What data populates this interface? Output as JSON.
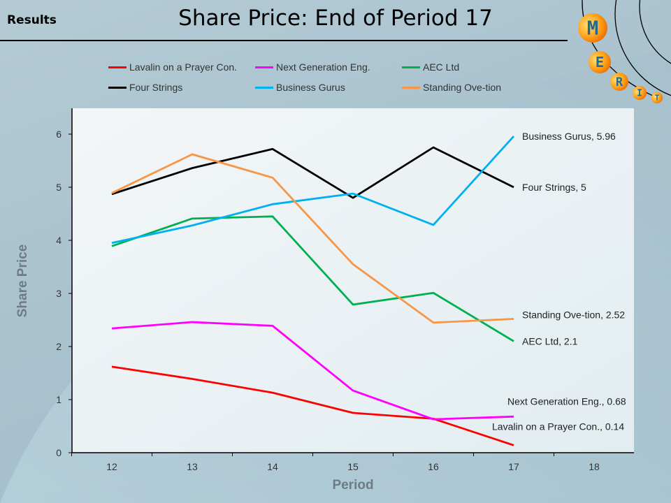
{
  "header": {
    "section_label": "Results",
    "title": "Share Price: End of Period 17"
  },
  "logo": {
    "text": "MERIT",
    "letters": [
      "M",
      "E",
      "R",
      "I",
      "T"
    ]
  },
  "chart_data": {
    "type": "line",
    "title": "Share Price: End of Period 17",
    "xlabel": "Period",
    "ylabel": "Share Price",
    "x": [
      12,
      13,
      14,
      15,
      16,
      17
    ],
    "x_ticks": [
      "12",
      "13",
      "14",
      "15",
      "16",
      "17",
      "18"
    ],
    "y_ticks": [
      "0",
      "1",
      "2",
      "3",
      "4",
      "5",
      "6"
    ],
    "xlim": [
      12,
      18
    ],
    "ylim": [
      0,
      6.5
    ],
    "grid": false,
    "legend_position": "top",
    "series": [
      {
        "name": "Lavalin on a Prayer Con.",
        "color": "#ff0000",
        "values": [
          1.62,
          1.39,
          1.13,
          0.75,
          0.64,
          0.14
        ],
        "end_label": "Lavalin on a Prayer Con., 0.14"
      },
      {
        "name": "Next Generation Eng.",
        "color": "#ff00ff",
        "values": [
          2.34,
          2.46,
          2.39,
          1.17,
          0.63,
          0.68
        ],
        "end_label": "Next Generation Eng., 0.68"
      },
      {
        "name": "AEC Ltd",
        "color": "#00b050",
        "values": [
          3.89,
          4.41,
          4.45,
          2.79,
          3.01,
          2.1
        ],
        "end_label": "AEC Ltd, 2.1"
      },
      {
        "name": "Four Strings",
        "color": "#000000",
        "values": [
          4.87,
          5.36,
          5.72,
          4.8,
          5.75,
          5
        ],
        "end_label": "Four Strings, 5"
      },
      {
        "name": "Business Gurus",
        "color": "#00b0f0",
        "values": [
          3.95,
          4.28,
          4.68,
          4.88,
          4.29,
          5.96
        ],
        "end_label": "Business Gurus, 5.96"
      },
      {
        "name": "Standing Ove-tion",
        "color": "#f79646",
        "values": [
          4.89,
          5.62,
          5.18,
          3.55,
          2.45,
          2.52
        ],
        "end_label": "Standing Ove-tion, 2.52"
      }
    ]
  }
}
